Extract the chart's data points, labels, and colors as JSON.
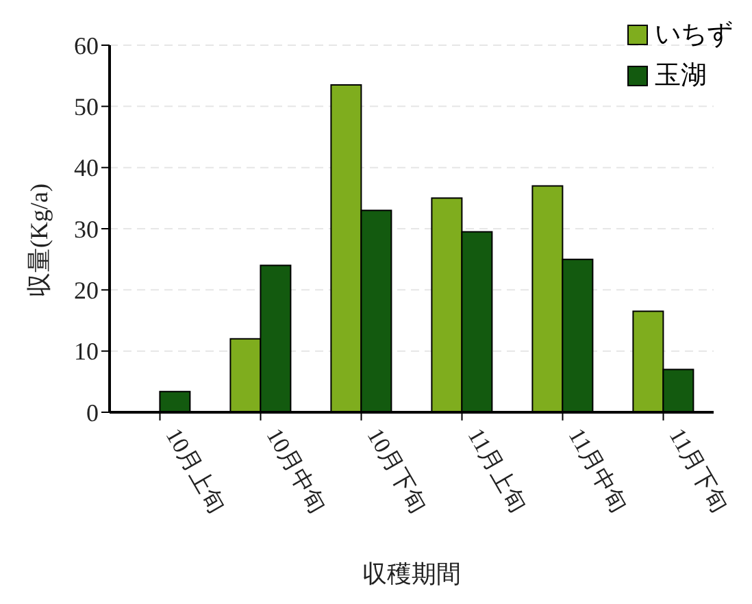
{
  "chart_data": {
    "type": "bar",
    "xlabel": "収穫期間",
    "ylabel": "収量(Kg/a)",
    "categories": [
      "10月上旬",
      "10月中旬",
      "10月下旬",
      "11月上旬",
      "11月中旬",
      "11月下旬"
    ],
    "series": [
      {
        "name": "いちず",
        "color": "#7fad1e",
        "values": [
          0,
          12,
          53.5,
          35,
          37,
          16.5
        ]
      },
      {
        "name": "玉湖",
        "color": "#135a0f",
        "values": [
          3.4,
          24,
          33,
          29.5,
          25,
          7
        ]
      }
    ],
    "ylim": [
      0,
      60
    ],
    "yticks": [
      0,
      10,
      20,
      30,
      40,
      50,
      60
    ],
    "grid": "y",
    "legend": "top right"
  }
}
